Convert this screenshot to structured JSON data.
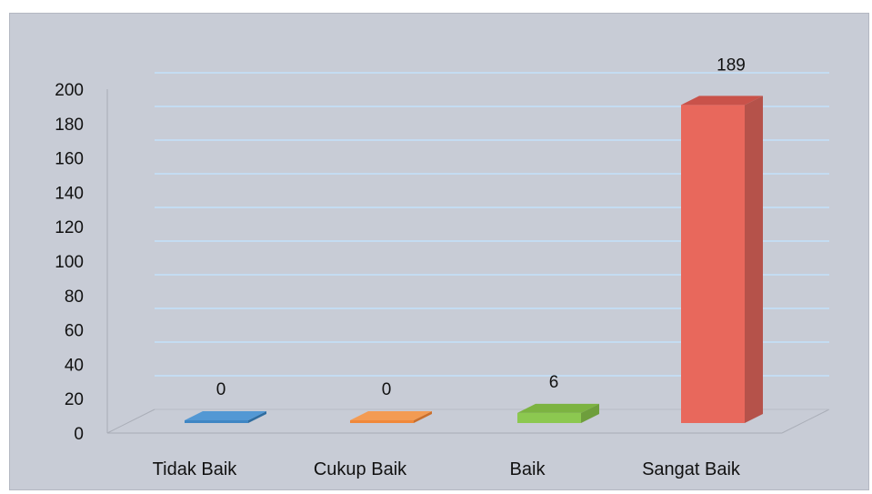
{
  "chart_data": {
    "type": "bar",
    "categories": [
      "Tidak Baik",
      "Cukup Baik",
      "Baik",
      "Sangat Baik"
    ],
    "values": [
      0,
      0,
      6,
      189
    ],
    "data_labels": [
      "0",
      "0",
      "6",
      "189"
    ],
    "title": "",
    "xlabel": "",
    "ylabel": "",
    "ylim": [
      0,
      200
    ],
    "y_ticks": [
      0,
      20,
      40,
      60,
      80,
      100,
      120,
      140,
      160,
      180,
      200
    ],
    "grid": true,
    "legend": "none",
    "style": "3d-column",
    "colors": [
      "#3f86c4",
      "#f0883a",
      "#8cc850",
      "#e8685c"
    ],
    "side_colors": [
      "#2f6c9f",
      "#c96f2d",
      "#6e9e3c",
      "#b5524a"
    ],
    "top_colors": [
      "#5398d4",
      "#f39b53",
      "#7cb341",
      "#c9524a"
    ],
    "background": "#c8ccd6",
    "gridline_color": "#c4dcf2"
  }
}
